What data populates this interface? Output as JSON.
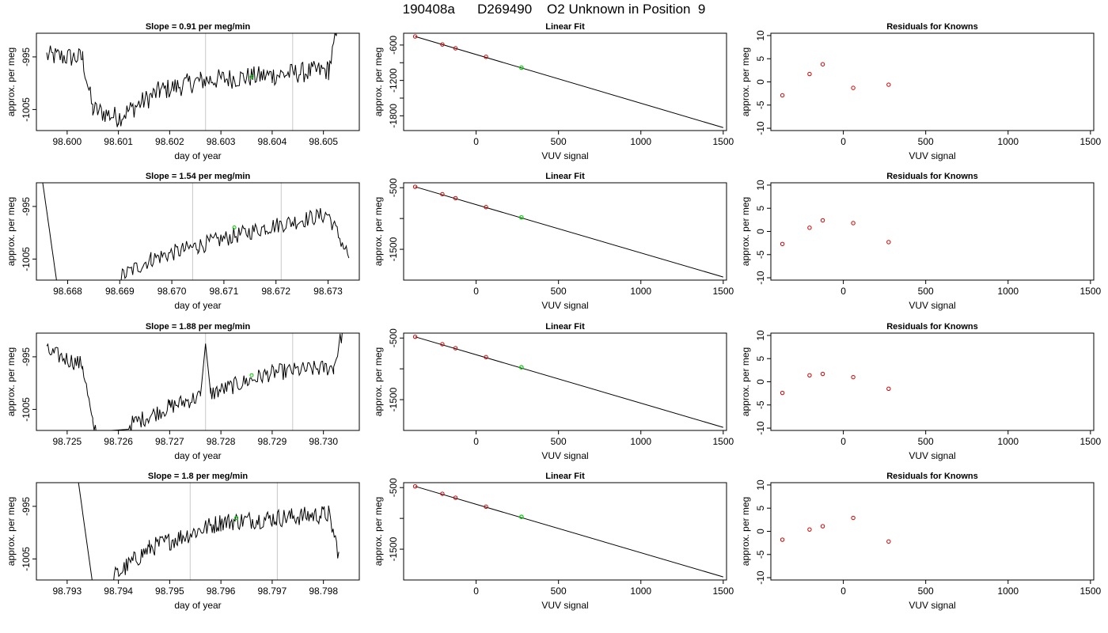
{
  "figure": {
    "title": "190408a      D269490    O2 Unknown in Position  9"
  },
  "colors": {
    "trace": "#000000",
    "known_points": "#cc0000",
    "unknown_point": "#00cc00",
    "marker_lines": "#c8c8c8",
    "frame": "#000000"
  },
  "chart_data": [
    {
      "type": "line",
      "panel": "row1-trace",
      "title": "Slope =  0.91  per meg/min",
      "xlabel": "day of year",
      "ylabel": "approx. per meg",
      "xlim": [
        98.5994,
        98.6057
      ],
      "ylim": [
        -1009,
        -990.5
      ],
      "xticks": [
        98.6,
        98.601,
        98.602,
        98.603,
        98.604,
        98.605
      ],
      "xtick_labels": [
        "98.600",
        "98.601",
        "98.602",
        "98.603",
        "98.604",
        "98.605"
      ],
      "yticks": [
        -1005,
        -995
      ],
      "ytick_labels": [
        "-1005",
        "-995"
      ],
      "vertical_markers": [
        98.6027,
        98.6044
      ],
      "unknown_point": {
        "x": 98.6036,
        "y": -998.8
      },
      "trace": {
        "x_start": 98.5996,
        "x_end": 98.6053,
        "segments": [
          {
            "x": [
              98.5996,
              98.6003
            ],
            "y": [
              -994.8,
              -995.2
            ]
          },
          {
            "x": [
              98.6003,
              98.6005
            ],
            "y": [
              -995.2,
              -1005
            ]
          },
          {
            "x": [
              98.6005,
              98.601
            ],
            "y": [
              -1005,
              -1006.5
            ]
          },
          {
            "x": [
              98.601,
              98.6018
            ],
            "y": [
              -1006.5,
              -1001.5
            ]
          },
          {
            "x": [
              98.6018,
              98.6026
            ],
            "y": [
              -1001.5,
              -999.5
            ]
          },
          {
            "x": [
              98.6026,
              98.604
            ],
            "y": [
              -999.5,
              -998.5
            ]
          },
          {
            "x": [
              98.604,
              98.6051
            ],
            "y": [
              -998.5,
              -997.5
            ]
          },
          {
            "x": [
              98.6051,
              98.6053
            ],
            "y": [
              -997.5,
              -989
            ]
          }
        ],
        "noise": 2.0
      },
      "grid": false
    },
    {
      "type": "line",
      "panel": "row1-fit",
      "title": "Linear Fit",
      "xlabel": "VUV signal",
      "ylabel": "approx. per meg",
      "xlim": [
        -440,
        1520
      ],
      "ylim": [
        -2050,
        -400
      ],
      "xticks": [
        0,
        500,
        1000,
        1500
      ],
      "xtick_labels": [
        "0",
        "500",
        "1000",
        "1500"
      ],
      "yticks": [
        -1800,
        -1500,
        -1200,
        -900,
        -600
      ],
      "ytick_labels": [
        "-1800",
        "",
        "-1200",
        "",
        "-600"
      ],
      "fit_line": {
        "x": [
          -370,
          1500
        ],
        "y": [
          -455,
          -2000
        ]
      },
      "known_points": {
        "x": [
          -370,
          -205,
          -125,
          60
        ],
        "y": [
          -455,
          -590,
          -655,
          -800
        ]
      },
      "unknown_point": {
        "x": 275,
        "y": -984
      },
      "grid": false
    },
    {
      "type": "scatter",
      "panel": "row1-residuals",
      "title": "Residuals for Knowns",
      "xlabel": "VUV signal",
      "ylabel": "approx. per meg",
      "xlim": [
        -440,
        1520
      ],
      "ylim": [
        -10.5,
        10.5
      ],
      "xticks": [
        0,
        500,
        1000,
        1500
      ],
      "xtick_labels": [
        "0",
        "500",
        "1000",
        "1500"
      ],
      "yticks": [
        -10,
        -5,
        0,
        5,
        10
      ],
      "ytick_labels": [
        "-10",
        "-5",
        "0",
        "5",
        "10"
      ],
      "points": {
        "x": [
          -370,
          -205,
          -125,
          60,
          275
        ],
        "y": [
          -2.9,
          1.7,
          3.8,
          -1.3,
          -0.6
        ]
      },
      "grid": false
    },
    {
      "type": "line",
      "panel": "row2-trace",
      "title": "Slope =  1.54  per meg/min",
      "xlabel": "day of year",
      "ylabel": "approx. per meg",
      "xlim": [
        98.6674,
        98.6736
      ],
      "ylim": [
        -1009,
        -990.5
      ],
      "xticks": [
        98.668,
        98.669,
        98.67,
        98.671,
        98.672,
        98.673
      ],
      "xtick_labels": [
        "98.668",
        "98.669",
        "98.670",
        "98.671",
        "98.672",
        "98.673"
      ],
      "yticks": [
        -1005,
        -995
      ],
      "ytick_labels": [
        "-1005",
        "-995"
      ],
      "vertical_markers": [
        98.6704,
        98.6721
      ],
      "unknown_point": {
        "x": 98.6712,
        "y": -999.0
      },
      "trace": {
        "x_start": 98.6675,
        "x_end": 98.6734,
        "segments": [
          {
            "x": [
              98.6675,
              98.6678
            ],
            "y": [
              -989,
              -1010
            ]
          },
          {
            "x": [
              98.669,
              98.6696
            ],
            "y": [
              -1008.5,
              -1005
            ]
          },
          {
            "x": [
              98.6696,
              98.6705
            ],
            "y": [
              -1005,
              -1002.5
            ]
          },
          {
            "x": [
              98.6705,
              98.6718
            ],
            "y": [
              -1002.5,
              -999
            ]
          },
          {
            "x": [
              98.6718,
              98.673
            ],
            "y": [
              -999,
              -996.5
            ]
          },
          {
            "x": [
              98.673,
              98.6734
            ],
            "y": [
              -996.5,
              -1004.5
            ]
          }
        ],
        "noise": 1.6
      },
      "grid": false
    },
    {
      "type": "line",
      "panel": "row2-fit",
      "title": "Linear Fit",
      "xlabel": "VUV signal",
      "ylabel": "approx. per meg",
      "xlim": [
        -440,
        1520
      ],
      "ylim": [
        -2000,
        -420
      ],
      "xticks": [
        0,
        500,
        1000,
        1500
      ],
      "xtick_labels": [
        "0",
        "500",
        "1000",
        "1500"
      ],
      "yticks": [
        -1500,
        -1000,
        -500
      ],
      "ytick_labels": [
        "-1500",
        "",
        "-500"
      ],
      "fit_line": {
        "x": [
          -370,
          1500
        ],
        "y": [
          -485,
          -1950
        ]
      },
      "known_points": {
        "x": [
          -370,
          -205,
          -125,
          60
        ],
        "y": [
          -485,
          -605,
          -670,
          -815
        ]
      },
      "unknown_point": {
        "x": 275,
        "y": -982
      },
      "grid": false
    },
    {
      "type": "scatter",
      "panel": "row2-residuals",
      "title": "Residuals for Knowns",
      "xlabel": "VUV signal",
      "ylabel": "approx. per meg",
      "xlim": [
        -440,
        1520
      ],
      "ylim": [
        -10.5,
        10.5
      ],
      "xticks": [
        0,
        500,
        1000,
        1500
      ],
      "xtick_labels": [
        "0",
        "500",
        "1000",
        "1500"
      ],
      "yticks": [
        -10,
        -5,
        0,
        5,
        10
      ],
      "ytick_labels": [
        "-10",
        "-5",
        "0",
        "5",
        "10"
      ],
      "points": {
        "x": [
          -370,
          -205,
          -125,
          60,
          275
        ],
        "y": [
          -2.7,
          0.8,
          2.4,
          1.8,
          -2.3
        ]
      },
      "grid": false
    },
    {
      "type": "line",
      "panel": "row3-trace",
      "title": "Slope =  1.88  per meg/min",
      "xlabel": "day of year",
      "ylabel": "approx. per meg",
      "xlim": [
        98.7244,
        98.7307
      ],
      "ylim": [
        -1009,
        -990.5
      ],
      "xticks": [
        98.725,
        98.726,
        98.727,
        98.728,
        98.729,
        98.73
      ],
      "xtick_labels": [
        "98.725",
        "98.726",
        "98.727",
        "98.728",
        "98.729",
        "98.730"
      ],
      "yticks": [
        -1005,
        -995
      ],
      "ytick_labels": [
        "-1005",
        "-995"
      ],
      "vertical_markers": [
        98.7277,
        98.7294
      ],
      "unknown_point": {
        "x": 98.7286,
        "y": -998.5
      },
      "trace": {
        "x_start": 98.7246,
        "x_end": 98.7304,
        "segments": [
          {
            "x": [
              98.7246,
              98.7253
            ],
            "y": [
              -994,
              -996.5
            ]
          },
          {
            "x": [
              98.7253,
              98.7255
            ],
            "y": [
              -996.5,
              -1008
            ]
          },
          {
            "x": [
              98.7255,
              98.7256
            ],
            "y": [
              -1008,
              -1009.5
            ]
          },
          {
            "x": [
              98.7262,
              98.727
            ],
            "y": [
              -1008,
              -1004.5
            ]
          },
          {
            "x": [
              98.727,
              98.7276
            ],
            "y": [
              -1004.5,
              -1002.5
            ]
          },
          {
            "x": [
              98.7276,
              98.7277
            ],
            "y": [
              -1002.5,
              -992.5
            ]
          },
          {
            "x": [
              98.7277,
              98.7278
            ],
            "y": [
              -992.5,
              -1002
            ]
          },
          {
            "x": [
              98.7278,
              98.729
            ],
            "y": [
              -1002,
              -998
            ]
          },
          {
            "x": [
              98.729,
              98.7302
            ],
            "y": [
              -998,
              -997
            ]
          },
          {
            "x": [
              98.7302,
              98.7304
            ],
            "y": [
              -997,
              -989
            ]
          }
        ],
        "noise": 1.6
      },
      "grid": false
    },
    {
      "type": "line",
      "panel": "row3-fit",
      "title": "Linear Fit",
      "xlabel": "VUV signal",
      "ylabel": "approx. per meg",
      "xlim": [
        -440,
        1520
      ],
      "ylim": [
        -2000,
        -420
      ],
      "xticks": [
        0,
        500,
        1000,
        1500
      ],
      "xtick_labels": [
        "0",
        "500",
        "1000",
        "1500"
      ],
      "yticks": [
        -1500,
        -1000,
        -500
      ],
      "ytick_labels": [
        "-1500",
        "",
        "-500"
      ],
      "fit_line": {
        "x": [
          -370,
          1500
        ],
        "y": [
          -480,
          -1950
        ]
      },
      "known_points": {
        "x": [
          -370,
          -205,
          -125,
          60
        ],
        "y": [
          -480,
          -600,
          -665,
          -810
        ]
      },
      "unknown_point": {
        "x": 275,
        "y": -975
      },
      "grid": false
    },
    {
      "type": "scatter",
      "panel": "row3-residuals",
      "title": "Residuals for Knowns",
      "xlabel": "VUV signal",
      "ylabel": "approx. per meg",
      "xlim": [
        -440,
        1520
      ],
      "ylim": [
        -10.5,
        10.5
      ],
      "xticks": [
        0,
        500,
        1000,
        1500
      ],
      "xtick_labels": [
        "0",
        "500",
        "1000",
        "1500"
      ],
      "yticks": [
        -10,
        -5,
        0,
        5,
        10
      ],
      "ytick_labels": [
        "-10",
        "-5",
        "0",
        "5",
        "10"
      ],
      "points": {
        "x": [
          -370,
          -205,
          -125,
          60,
          275
        ],
        "y": [
          -2.4,
          1.4,
          1.7,
          1.0,
          -1.5
        ]
      },
      "grid": false
    },
    {
      "type": "line",
      "panel": "row4-trace",
      "title": "Slope =  1.8  per meg/min",
      "xlabel": "day of year",
      "ylabel": "approx. per meg",
      "xlim": [
        98.7924,
        98.7987
      ],
      "ylim": [
        -1009,
        -990.5
      ],
      "xticks": [
        98.793,
        98.794,
        98.795,
        98.796,
        98.797,
        98.798
      ],
      "xtick_labels": [
        "98.793",
        "98.794",
        "98.795",
        "98.796",
        "98.797",
        "98.798"
      ],
      "yticks": [
        -1005,
        -995
      ],
      "ytick_labels": [
        "-1005",
        "-995"
      ],
      "vertical_markers": [
        98.7954,
        98.7971
      ],
      "unknown_point": {
        "x": 98.7963,
        "y": -997.2
      },
      "trace": {
        "x_start": 98.7932,
        "x_end": 98.7983,
        "segments": [
          {
            "x": [
              98.7932,
              98.7935
            ],
            "y": [
              -989,
              -1010
            ]
          },
          {
            "x": [
              98.7939,
              98.7946
            ],
            "y": [
              -1008.5,
              -1003
            ]
          },
          {
            "x": [
              98.7946,
              98.796
            ],
            "y": [
              -1003,
              -998
            ]
          },
          {
            "x": [
              98.796,
              98.7981
            ],
            "y": [
              -998,
              -996.5
            ]
          },
          {
            "x": [
              98.7981,
              98.7983
            ],
            "y": [
              -996.5,
              -1004
            ]
          }
        ],
        "noise": 1.8
      },
      "grid": false
    },
    {
      "type": "line",
      "panel": "row4-fit",
      "title": "Linear Fit",
      "xlabel": "VUV signal",
      "ylabel": "approx. per meg",
      "xlim": [
        -440,
        1520
      ],
      "ylim": [
        -2000,
        -420
      ],
      "xticks": [
        0,
        500,
        1000,
        1500
      ],
      "xtick_labels": [
        "0",
        "500",
        "1000",
        "1500"
      ],
      "yticks": [
        -1500,
        -1000,
        -500
      ],
      "ytick_labels": [
        "-1500",
        "",
        "-500"
      ],
      "fit_line": {
        "x": [
          -370,
          1500
        ],
        "y": [
          -480,
          -1950
        ]
      },
      "known_points": {
        "x": [
          -370,
          -205,
          -125,
          60
        ],
        "y": [
          -480,
          -600,
          -665,
          -810
        ]
      },
      "unknown_point": {
        "x": 275,
        "y": -975
      },
      "grid": false
    },
    {
      "type": "scatter",
      "panel": "row4-residuals",
      "title": "Residuals for Knowns",
      "xlabel": "VUV signal",
      "ylabel": "approx. per meg",
      "xlim": [
        -440,
        1520
      ],
      "ylim": [
        -10.5,
        10.5
      ],
      "xticks": [
        0,
        500,
        1000,
        1500
      ],
      "xtick_labels": [
        "0",
        "500",
        "1000",
        "1500"
      ],
      "yticks": [
        -10,
        -5,
        0,
        5,
        10
      ],
      "ytick_labels": [
        "-10",
        "-5",
        "0",
        "5",
        "10"
      ],
      "points": {
        "x": [
          -370,
          -205,
          -125,
          60,
          275
        ],
        "y": [
          -1.8,
          0.4,
          1.1,
          2.9,
          -2.2
        ]
      },
      "grid": false
    }
  ]
}
